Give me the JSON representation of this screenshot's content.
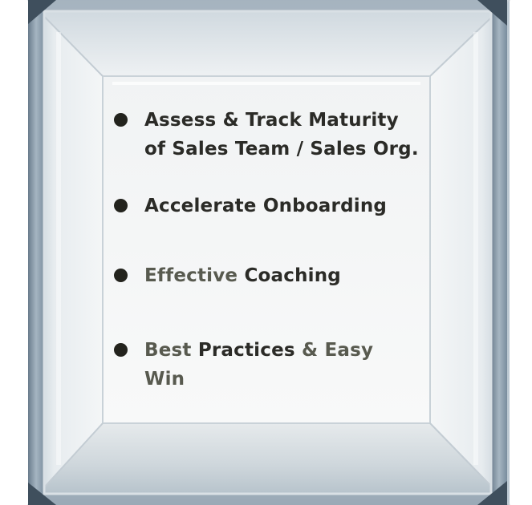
{
  "bullets": [
    {
      "line1": [
        {
          "text": "Assess & Track Maturity",
          "tone": "dark"
        }
      ],
      "line2": [
        {
          "text": "of Sales Team / Sales Org.",
          "tone": "dark"
        }
      ]
    },
    {
      "line1": [
        {
          "text": "Accelerate Onboarding",
          "tone": "dark"
        }
      ]
    },
    {
      "line1": [
        {
          "text": "Effective",
          "tone": "muted"
        },
        {
          "text": " Coaching",
          "tone": "dark"
        }
      ]
    },
    {
      "line1": [
        {
          "text": "Best",
          "tone": "muted"
        },
        {
          "text": " Practices",
          "tone": "dark"
        },
        {
          "text": " & Easy",
          "tone": "muted"
        }
      ],
      "line2": [
        {
          "text": "Win",
          "tone": "muted"
        }
      ]
    }
  ],
  "colors": {
    "bullet_dot": "#23231d",
    "text_dark": "#2b2b27",
    "text_muted": "#585a4f",
    "glass_edge": "#6f8396"
  }
}
